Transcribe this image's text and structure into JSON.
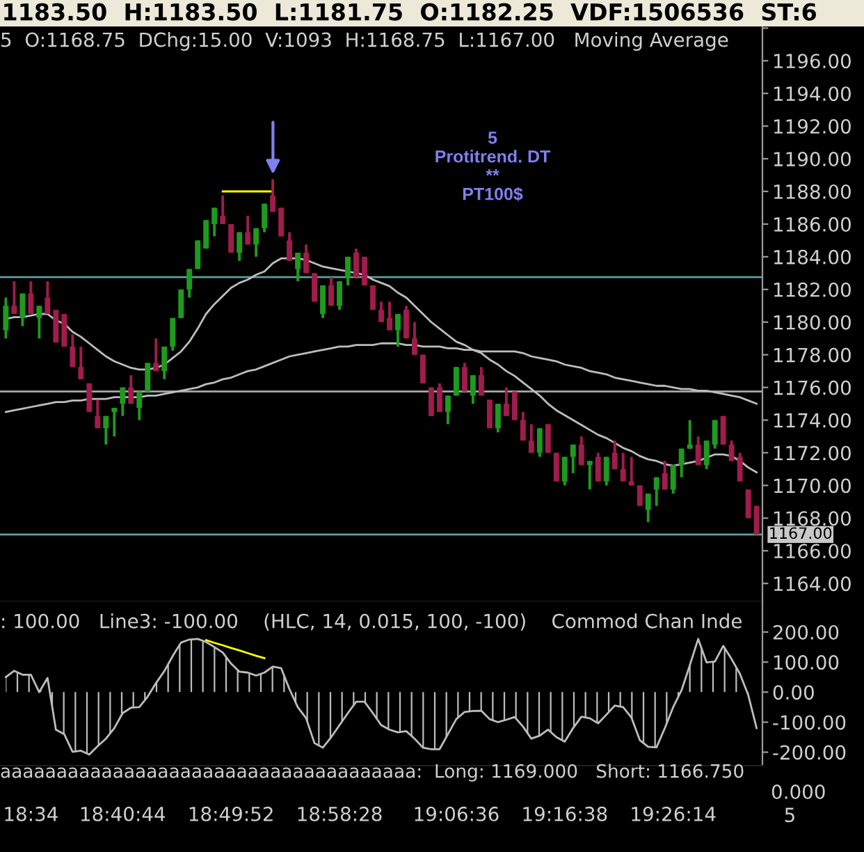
{
  "chart_data": [
    {
      "type": "candlestick",
      "title": "1183.50  H:1183.50  L:1181.75  O:1182.25  VDF:1506536  ST:6",
      "subtitle": "5  O:1168.75  DChg:15.00  V:1093  H:1168.75  L:1167.00   Moving Average",
      "categories": [
        null,
        null,
        null,
        null,
        null,
        null,
        null,
        null,
        null,
        null,
        null,
        null,
        null,
        null,
        null,
        null,
        null,
        null,
        null,
        null,
        null,
        null,
        null,
        null,
        null,
        null,
        null,
        null,
        null,
        null,
        null,
        null,
        null,
        null,
        null,
        null,
        null,
        null,
        null,
        null,
        null,
        null,
        null,
        null,
        null,
        null,
        null,
        null,
        null,
        null,
        null,
        null,
        null,
        null,
        null,
        null,
        null,
        null,
        null,
        null,
        null,
        null,
        null,
        null,
        null,
        null,
        null,
        null,
        null,
        null,
        null,
        null,
        null,
        null,
        null,
        null,
        null,
        null,
        null,
        null,
        null,
        null,
        null,
        null,
        null,
        null,
        null,
        null,
        null,
        null,
        null
      ],
      "ohlc": [
        [
          1179.5,
          1181.5,
          1179,
          1181
        ],
        [
          1181,
          1182.5,
          1180.5,
          1180.5
        ],
        [
          1180.25,
          1181.75,
          1179.75,
          1181.75
        ],
        [
          1181.75,
          1182.5,
          1180.5,
          1180.5
        ],
        [
          1180.25,
          1181,
          1179,
          1181
        ],
        [
          1181.5,
          1182.5,
          1180.5,
          1180.5
        ],
        [
          1180.75,
          1180.75,
          1178.75,
          1178.75
        ],
        [
          1180.5,
          1180.5,
          1178.5,
          1178.5
        ],
        [
          1178.5,
          1179.25,
          1177.25,
          1177.25
        ],
        [
          1177.25,
          1178.5,
          1176.5,
          1176.5
        ],
        [
          1176.25,
          1176.25,
          1174.5,
          1174.5
        ],
        [
          1174.25,
          1175.25,
          1173.5,
          1173.5
        ],
        [
          1173.5,
          1174.25,
          1172.5,
          1174.25
        ],
        [
          1174.5,
          1174.75,
          1173,
          1174.75
        ],
        [
          1175,
          1176,
          1174.25,
          1176
        ],
        [
          1176,
          1176.75,
          1175,
          1175
        ],
        [
          1174.75,
          1175.75,
          1174,
          1175.75
        ],
        [
          1175.75,
          1177.5,
          1175.75,
          1177.5
        ],
        [
          1177.5,
          1179,
          1177,
          1177
        ],
        [
          1177,
          1178.5,
          1176.5,
          1178.5
        ],
        [
          1178.5,
          1180.25,
          1178.25,
          1180.25
        ],
        [
          1180.25,
          1182,
          1180.25,
          1182
        ],
        [
          1182,
          1183.25,
          1181.5,
          1183.25
        ],
        [
          1183.25,
          1185,
          1183.25,
          1185
        ],
        [
          1184.5,
          1186.25,
          1184.5,
          1186.25
        ],
        [
          1186,
          1187,
          1185.25,
          1187
        ],
        [
          1186.5,
          1187.75,
          1186,
          1186
        ],
        [
          1186,
          1186,
          1184.25,
          1184.25
        ],
        [
          1184.25,
          1185.5,
          1183.75,
          1185.5
        ],
        [
          1185.5,
          1186.5,
          1184.75,
          1184.75
        ],
        [
          1184.75,
          1185.75,
          1184,
          1185.75
        ],
        [
          1185.75,
          1187.25,
          1185.5,
          1187.25
        ],
        [
          1187.75,
          1188.75,
          1186.75,
          1186.75
        ],
        [
          1187,
          1187,
          1185.25,
          1185.25
        ],
        [
          1185,
          1185.5,
          1183.75,
          1183.75
        ],
        [
          1183.25,
          1184.25,
          1182.5,
          1184.25
        ],
        [
          1184.25,
          1184.75,
          1183,
          1183
        ],
        [
          1183,
          1183,
          1181.25,
          1181.25
        ],
        [
          1180.5,
          1182.25,
          1180.25,
          1182.25
        ],
        [
          1182.25,
          1182.75,
          1181,
          1181
        ],
        [
          1181,
          1182.5,
          1180.75,
          1182.5
        ],
        [
          1182.75,
          1184,
          1182.25,
          1184
        ],
        [
          1184.25,
          1184.5,
          1182.75,
          1182.75
        ],
        [
          1184,
          1184,
          1182.25,
          1182.25
        ],
        [
          1182.25,
          1182.25,
          1180.75,
          1180.75
        ],
        [
          1180.75,
          1181.25,
          1180,
          1180
        ],
        [
          1180.25,
          1181.25,
          1179.5,
          1179.5
        ],
        [
          1179.5,
          1180.5,
          1178.5,
          1180.5
        ],
        [
          1180.75,
          1181,
          1179,
          1179
        ],
        [
          1179,
          1180,
          1178,
          1178
        ],
        [
          1178,
          1178,
          1176.25,
          1176.25
        ],
        [
          1176,
          1176,
          1174.25,
          1174.25
        ],
        [
          1176,
          1176.25,
          1174.5,
          1174.5
        ],
        [
          1174.5,
          1175.5,
          1173.75,
          1175.5
        ],
        [
          1175.5,
          1177.25,
          1175.5,
          1177.25
        ],
        [
          1177.25,
          1177.5,
          1175.75,
          1175.75
        ],
        [
          1175.5,
          1176.75,
          1175,
          1176.75
        ],
        [
          1176.75,
          1177.25,
          1175.5,
          1175.5
        ],
        [
          1175.25,
          1175.25,
          1173.5,
          1173.5
        ],
        [
          1173.5,
          1175,
          1173.25,
          1175
        ],
        [
          1175,
          1176,
          1174.25,
          1174.25
        ],
        [
          1175.75,
          1175.75,
          1174,
          1174
        ],
        [
          1174,
          1174.5,
          1172.75,
          1172.75
        ],
        [
          1172.75,
          1173.75,
          1172,
          1172
        ],
        [
          1172,
          1173.5,
          1171.75,
          1173.5
        ],
        [
          1173.75,
          1173.75,
          1172,
          1172
        ],
        [
          1172,
          1172,
          1170.25,
          1170.25
        ],
        [
          1170.25,
          1171.75,
          1170,
          1171.75
        ],
        [
          1171.75,
          1172.5,
          1170.75,
          1172.5
        ],
        [
          1172.5,
          1173,
          1171.25,
          1171.25
        ],
        [
          1171.25,
          1171.5,
          1169.75,
          1171.5
        ],
        [
          1171.75,
          1172,
          1170.25,
          1170.25
        ],
        [
          1170.25,
          1171.75,
          1170,
          1171.75
        ],
        [
          1172,
          1172.75,
          1171,
          1171
        ],
        [
          1171,
          1172,
          1170.25,
          1170.25
        ],
        [
          1170.25,
          1171.75,
          1170,
          1170
        ],
        [
          1170,
          1170,
          1168.75,
          1168.75
        ],
        [
          1168.5,
          1169.5,
          1167.75,
          1169.5
        ],
        [
          1169.75,
          1170.5,
          1168.75,
          1170.5
        ],
        [
          1170.75,
          1171.5,
          1169.75,
          1169.75
        ],
        [
          1169.75,
          1171.25,
          1169.5,
          1171.25
        ],
        [
          1171.25,
          1172.25,
          1170.5,
          1172.25
        ],
        [
          1172.25,
          1174,
          1172.25,
          1172.5
        ],
        [
          1172.5,
          1173,
          1171.25,
          1171.25
        ],
        [
          1171.25,
          1172.75,
          1171,
          1172.75
        ],
        [
          1172.5,
          1174,
          1172.25,
          1174
        ],
        [
          1174.25,
          1174.25,
          1172.5,
          1172.5
        ],
        [
          1172.5,
          1172.75,
          1171.5,
          1171.5
        ],
        [
          1171.75,
          1172,
          1170.25,
          1170.25
        ],
        [
          1169.75,
          1169.75,
          1168,
          1168
        ],
        [
          1168.75,
          1168.75,
          1167,
          1167
        ]
      ],
      "colors": [
        "#1e9a1e",
        "#a01c4c",
        "#1e9a1e",
        "#a01c4c",
        "#1e9a1e",
        "#a01c4c",
        "#a01c4c",
        "#a01c4c",
        "#a01c4c",
        "#a01c4c",
        "#a01c4c",
        "#a01c4c",
        "#1e9a1e",
        "#1e9a1e",
        "#1e9a1e",
        "#a01c4c",
        "#1e9a1e",
        "#1e9a1e",
        "#a01c4c",
        "#1e9a1e",
        "#1e9a1e",
        "#1e9a1e",
        "#1e9a1e",
        "#1e9a1e",
        "#1e9a1e",
        "#1e9a1e",
        "#a01c4c",
        "#a01c4c",
        "#1e9a1e",
        "#a01c4c",
        "#1e9a1e",
        "#1e9a1e",
        "#a01c4c",
        "#a01c4c",
        "#a01c4c",
        "#1e9a1e",
        "#a01c4c",
        "#a01c4c",
        "#1e9a1e",
        "#a01c4c",
        "#1e9a1e",
        "#1e9a1e",
        "#a01c4c",
        "#a01c4c",
        "#a01c4c",
        "#a01c4c",
        "#a01c4c",
        "#1e9a1e",
        "#a01c4c",
        "#a01c4c",
        "#a01c4c",
        "#a01c4c",
        "#a01c4c",
        "#1e9a1e",
        "#1e9a1e",
        "#a01c4c",
        "#1e9a1e",
        "#a01c4c",
        "#a01c4c",
        "#1e9a1e",
        "#a01c4c",
        "#a01c4c",
        "#a01c4c",
        "#a01c4c",
        "#1e9a1e",
        "#a01c4c",
        "#a01c4c",
        "#1e9a1e",
        "#1e9a1e",
        "#a01c4c",
        "#1e9a1e",
        "#a01c4c",
        "#1e9a1e",
        "#a01c4c",
        "#a01c4c",
        "#a01c4c",
        "#a01c4c",
        "#1e9a1e",
        "#1e9a1e",
        "#a01c4c",
        "#1e9a1e",
        "#1e9a1e",
        "#1e9a1e",
        "#a01c4c",
        "#1e9a1e",
        "#1e9a1e",
        "#a01c4c",
        "#a01c4c",
        "#a01c4c",
        "#a01c4c",
        "#a01c4c"
      ],
      "series": [
        {
          "type": "line",
          "color": "#bdbdbd",
          "values": [
            1180.2,
            1180.3,
            1180.3,
            1180.4,
            1180.5,
            1180.5,
            1180.1,
            1179.9,
            1179.4,
            1179.1,
            1178.7,
            1178.3,
            1177.9,
            1177.6,
            1177.4,
            1177.2,
            1177.1,
            1177.1,
            1177.2,
            1177.4,
            1177.8,
            1178.2,
            1178.8,
            1179.6,
            1180.5,
            1181.1,
            1181.6,
            1182.1,
            1182.4,
            1182.6,
            1182.9,
            1183.1,
            1183.6,
            1183.9,
            1183.9,
            1183.9,
            1183.8,
            1183.6,
            1183.4,
            1183.3,
            1183.2,
            1183.1,
            1183,
            1182.9,
            1182.6,
            1182.4,
            1182.2,
            1181.8,
            1181.5,
            1181,
            1180.5,
            1180,
            1179.6,
            1179.2,
            1178.8,
            1178.6,
            1178.3,
            1178.1,
            1177.7,
            1177.4,
            1177,
            1176.7,
            1176.3,
            1175.9,
            1175.5,
            1175,
            1174.6,
            1174.3,
            1174,
            1173.7,
            1173.4,
            1173.1,
            1172.9,
            1172.6,
            1172.3,
            1172.1,
            1171.8,
            1171.6,
            1171.5,
            1171.3,
            1171.2,
            1171.3,
            1171.4,
            1171.5,
            1171.7,
            1171.9,
            1171.9,
            1171.8,
            1171.5,
            1171.1,
            1170.8
          ]
        },
        {
          "type": "line",
          "color": "#bdbdbd",
          "values": [
            1174.5,
            1174.6,
            1174.7,
            1174.8,
            1174.9,
            1175,
            1175.1,
            1175.1,
            1175.2,
            1175.2,
            1175.3,
            1175.3,
            1175.3,
            1175.4,
            1175.4,
            1175.4,
            1175.4,
            1175.5,
            1175.5,
            1175.6,
            1175.7,
            1175.8,
            1175.9,
            1176,
            1176.2,
            1176.3,
            1176.5,
            1176.6,
            1176.8,
            1177,
            1177.1,
            1177.3,
            1177.5,
            1177.7,
            1177.9,
            1178,
            1178.1,
            1178.2,
            1178.3,
            1178.4,
            1178.5,
            1178.5,
            1178.6,
            1178.6,
            1178.6,
            1178.7,
            1178.7,
            1178.7,
            1178.6,
            1178.6,
            1178.5,
            1178.5,
            1178.5,
            1178.4,
            1178.4,
            1178.3,
            1178.3,
            1178.2,
            1178.2,
            1178.2,
            1178.2,
            1178.2,
            1178.1,
            1177.9,
            1177.8,
            1177.7,
            1177.6,
            1177.4,
            1177.3,
            1177.2,
            1177,
            1176.9,
            1176.8,
            1176.6,
            1176.5,
            1176.4,
            1176.3,
            1176.2,
            1176.1,
            1176.1,
            1176,
            1175.9,
            1175.9,
            1175.8,
            1175.8,
            1175.7,
            1175.6,
            1175.5,
            1175.4,
            1175.2,
            1175
          ]
        },
        {
          "type": "line",
          "color": "#ffff00",
          "values": [
            null,
            null,
            null,
            null,
            null,
            null,
            null,
            null,
            null,
            null,
            null,
            null,
            null,
            null,
            null,
            null,
            null,
            null,
            null,
            null,
            null,
            null,
            null,
            null,
            null,
            null,
            1188,
            1188,
            1188,
            1188,
            1188,
            1188,
            1188,
            null,
            null,
            null,
            null,
            null,
            null,
            null,
            null,
            null,
            null,
            null,
            null,
            null,
            null,
            null,
            null,
            null,
            null,
            null,
            null,
            null,
            null,
            null,
            null,
            null,
            null,
            null,
            null,
            null,
            null,
            null,
            null,
            null,
            null,
            null,
            null,
            null,
            null,
            null,
            null,
            null,
            null,
            null,
            null,
            null,
            null,
            null,
            null,
            null,
            null,
            null,
            null,
            null,
            null,
            null,
            null,
            null,
            null
          ]
        }
      ],
      "ref_lines": [
        {
          "axis": "y",
          "value": 1182.75,
          "color": "#5f9f9f"
        },
        {
          "axis": "y",
          "value": 1175.75,
          "color": "#a8a8a8"
        },
        {
          "axis": "y",
          "value": 1167,
          "label": "1167.00",
          "color": "#5f9f9f"
        }
      ],
      "annotations": [
        "5\nProtitrend. DT\n**\nPT100$"
      ],
      "ylim": [
        1162.9,
        1198.1
      ],
      "yticks": [
        {
          "value": 1164,
          "label": "1164.00"
        },
        {
          "value": 1166,
          "label": "1166.00"
        },
        {
          "value": 1168,
          "label": "1168.00"
        },
        {
          "value": 1170,
          "label": "1170.00"
        },
        {
          "value": 1172,
          "label": "1172.00"
        },
        {
          "value": 1174,
          "label": "1174.00"
        },
        {
          "value": 1176,
          "label": "1176.00"
        },
        {
          "value": 1178,
          "label": "1178.00"
        },
        {
          "value": 1180,
          "label": "1180.00"
        },
        {
          "value": 1182,
          "label": "1182.00"
        },
        {
          "value": 1184,
          "label": "1184.00"
        },
        {
          "value": 1186,
          "label": "1186.00"
        },
        {
          "value": 1188,
          "label": "1188.00"
        },
        {
          "value": 1190,
          "label": "1190.00"
        },
        {
          "value": 1192,
          "label": "1192.00"
        },
        {
          "value": 1194,
          "label": "1194.00"
        },
        {
          "value": 1196,
          "label": "1196.00"
        },
        {
          "value": 1198,
          "label": null
        }
      ],
      "tick_labels": "y"
    },
    {
      "type": "area",
      "title": ": 100.00   Line3: -100.00    (HLC, 14, 0.015, 100, -100)    Commod Chan Inde",
      "categories": [
        null,
        null,
        null,
        "18:34",
        null,
        null,
        null,
        null,
        null,
        null,
        null,
        null,
        null,
        null,
        "18:40:44",
        null,
        null,
        null,
        null,
        null,
        null,
        null,
        null,
        null,
        null,
        null,
        null,
        "18:49:52",
        null,
        null,
        null,
        null,
        null,
        null,
        null,
        null,
        null,
        null,
        null,
        null,
        "18:58:28",
        null,
        null,
        null,
        null,
        null,
        null,
        null,
        null,
        null,
        null,
        null,
        null,
        null,
        "19:06:36",
        null,
        null,
        null,
        null,
        null,
        null,
        null,
        null,
        null,
        null,
        null,
        null,
        "19:16:38",
        null,
        null,
        null,
        null,
        null,
        null,
        null,
        null,
        null,
        null,
        null,
        null,
        "19:26:14",
        null,
        null,
        null,
        null,
        null,
        null,
        null,
        null,
        null,
        null
      ],
      "series": [
        {
          "color": "#bdbdbd",
          "values": [
            50,
            71,
            58,
            58,
            0,
            47,
            -125,
            -140,
            -199,
            -195,
            -208,
            -180,
            -155,
            -120,
            -70,
            -52,
            -50,
            -15,
            30,
            70,
            120,
            165,
            175,
            177,
            167,
            150,
            132,
            95,
            68,
            65,
            55,
            65,
            85,
            80,
            10,
            -50,
            -87,
            -170,
            -185,
            -150,
            -110,
            -70,
            -32,
            -32,
            -70,
            -110,
            -125,
            -134,
            -130,
            -155,
            -185,
            -190,
            -190,
            -140,
            -90,
            -66,
            -63,
            -62,
            -90,
            -100,
            -92,
            -83,
            -115,
            -155,
            -145,
            -125,
            -150,
            -165,
            -120,
            -82,
            -87,
            -104,
            -75,
            -45,
            -50,
            -85,
            -160,
            -182,
            -184,
            -120,
            -50,
            6,
            90,
            177,
            99,
            102,
            154,
            110,
            61,
            -10,
            -120
          ]
        },
        {
          "type": "line",
          "color": "#ffff00",
          "values": [
            null,
            null,
            null,
            null,
            null,
            null,
            null,
            null,
            null,
            null,
            null,
            null,
            null,
            null,
            null,
            null,
            null,
            null,
            null,
            null,
            null,
            null,
            null,
            null,
            173,
            164,
            156,
            147,
            139,
            130,
            121,
            113,
            null,
            null,
            null,
            null,
            null,
            null,
            null,
            null,
            null,
            null,
            null,
            null,
            null,
            null,
            null,
            null,
            null,
            null,
            null,
            null,
            null,
            null,
            null,
            null,
            null,
            null,
            null,
            null,
            null,
            null,
            null,
            null,
            null,
            null,
            null,
            null,
            null,
            null,
            null,
            null,
            null,
            null,
            null,
            null,
            null,
            null,
            null,
            null,
            null,
            null,
            null,
            null,
            null,
            null,
            null,
            null,
            null,
            null,
            null
          ]
        }
      ],
      "ylim": [
        -245,
        302
      ],
      "yticks": [
        {
          "value": -200,
          "label": "-200.00"
        },
        {
          "value": -100,
          "label": "-100.00"
        },
        {
          "value": 0,
          "label": "0.00"
        },
        {
          "value": 100,
          "label": "100.00"
        },
        {
          "value": 200,
          "label": "200.00"
        }
      ],
      "annotations": [
        "5"
      ]
    },
    {
      "type": "other",
      "annotations": [
        "aaaaaaaaaaaaaaaaaaaaaaaaaaaaaaaaaaaaa:  Long: 1169.000   Short: 1166.750",
        "0.000"
      ]
    }
  ]
}
